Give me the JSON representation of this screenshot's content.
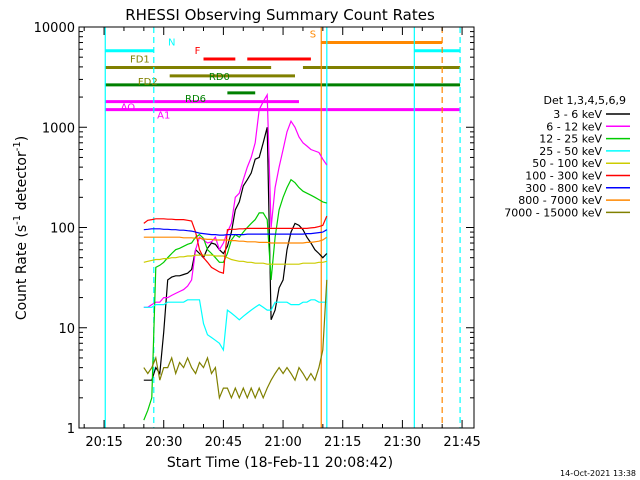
{
  "chart_data": {
    "type": "line",
    "title": "RHESSI Observing Summary Count Rates",
    "xlabel": "Start Time (18-Feb-11 20:08:42)",
    "ylabel_main": "Count Rate (s",
    "ylabel_sup1": "-1",
    "ylabel_mid": " detector",
    "ylabel_sup2": "-1",
    "ylabel_end": ")",
    "yscale": "log",
    "ylim": [
      1,
      10000
    ],
    "xlim_minutes": [
      20.15,
      21.8
    ],
    "x_ticks": [
      "20:15",
      "20:30",
      "20:45",
      "21:00",
      "21:15",
      "21:30",
      "21:45"
    ],
    "x_tick_minutes": [
      15,
      30,
      45,
      60,
      75,
      90,
      105
    ],
    "y_ticks": [
      "1",
      "10",
      "100",
      "1000",
      "10000"
    ],
    "y_tick_values": [
      1,
      10,
      100,
      1000,
      10000
    ],
    "timestamp": "14-Oct-2021 13:38",
    "legend_header": "Det 1,3,4,5,6,9",
    "series": [
      {
        "name": "3 - 6 keV",
        "color": "#000000",
        "x": [
          25,
          26,
          27,
          28,
          29,
          30,
          31,
          32,
          33,
          34,
          35,
          36,
          37,
          38,
          39,
          40,
          41,
          42,
          43,
          44,
          45,
          46,
          47,
          48,
          49,
          50,
          51,
          52,
          53,
          54,
          55,
          56,
          57,
          58,
          59,
          60,
          61,
          62,
          63,
          64,
          65,
          66,
          67,
          68,
          69,
          70,
          71
        ],
        "y": [
          3,
          3,
          3,
          4,
          3.5,
          9,
          30,
          32,
          33,
          33,
          34,
          35,
          38,
          60,
          55,
          50,
          62,
          70,
          68,
          60,
          55,
          65,
          90,
          150,
          180,
          260,
          300,
          350,
          480,
          500,
          700,
          1000,
          12,
          15,
          25,
          30,
          60,
          90,
          110,
          105,
          95,
          80,
          70,
          60,
          55,
          50,
          55
        ]
      },
      {
        "name": "6 - 12 keV",
        "color": "#ff00ff",
        "x": [
          25,
          26,
          27,
          28,
          29,
          30,
          31,
          32,
          33,
          34,
          35,
          36,
          37,
          38,
          39,
          40,
          41,
          42,
          43,
          44,
          45,
          46,
          47,
          48,
          49,
          50,
          51,
          52,
          53,
          54,
          55,
          56,
          57,
          58,
          59,
          60,
          61,
          62,
          63,
          64,
          65,
          66,
          67,
          68,
          69,
          70,
          71
        ],
        "y": [
          16,
          16,
          17,
          18,
          18,
          20,
          20,
          21,
          22,
          23,
          24,
          26,
          30,
          60,
          80,
          75,
          70,
          72,
          80,
          60,
          70,
          90,
          110,
          200,
          220,
          300,
          400,
          500,
          700,
          1500,
          1800,
          2100,
          100,
          250,
          400,
          600,
          900,
          1150,
          1000,
          800,
          700,
          650,
          600,
          580,
          560,
          480,
          420
        ]
      },
      {
        "name": "12 - 25 keV",
        "color": "#00cc00",
        "x": [
          25,
          26,
          27,
          28,
          29,
          30,
          31,
          32,
          33,
          34,
          35,
          36,
          37,
          38,
          39,
          40,
          41,
          42,
          43,
          44,
          45,
          46,
          47,
          48,
          49,
          50,
          51,
          52,
          53,
          54,
          55,
          56,
          57,
          58,
          59,
          60,
          61,
          62,
          63,
          64,
          65,
          66,
          67,
          68,
          69,
          70,
          71
        ],
        "y": [
          1.2,
          1.5,
          2,
          40,
          42,
          45,
          50,
          55,
          60,
          62,
          65,
          68,
          70,
          80,
          85,
          78,
          60,
          55,
          50,
          45,
          45,
          55,
          75,
          85,
          80,
          90,
          100,
          110,
          120,
          140,
          140,
          120,
          30,
          80,
          150,
          200,
          250,
          300,
          280,
          250,
          230,
          220,
          210,
          200,
          190,
          180,
          175
        ]
      },
      {
        "name": "25 - 50 keV",
        "color": "#00ffff",
        "x": [
          25,
          26,
          27,
          28,
          29,
          30,
          31,
          32,
          33,
          34,
          35,
          36,
          37,
          38,
          39,
          40,
          41,
          42,
          43,
          44,
          45,
          46,
          47,
          48,
          49,
          50,
          51,
          52,
          53,
          54,
          55,
          56,
          57,
          58,
          59,
          60,
          61,
          62,
          63,
          64,
          65,
          66,
          67,
          68,
          69,
          70,
          71
        ],
        "y": [
          16,
          16,
          16,
          17,
          17,
          17,
          18,
          18,
          18,
          18,
          18,
          19,
          19,
          19,
          19,
          11,
          8.5,
          8,
          7.5,
          7,
          6,
          15,
          14,
          13,
          12,
          13,
          14,
          15,
          16,
          17,
          16,
          15,
          15,
          18,
          18,
          18,
          18,
          17,
          17,
          17,
          18,
          18,
          19,
          19,
          18,
          18,
          18
        ]
      },
      {
        "name": "50 - 100 keV",
        "color": "#cccc00",
        "x": [
          25,
          26,
          27,
          28,
          29,
          30,
          31,
          32,
          33,
          34,
          35,
          36,
          37,
          38,
          39,
          40,
          41,
          42,
          43,
          44,
          45,
          46,
          47,
          48,
          49,
          50,
          51,
          52,
          53,
          54,
          55,
          56,
          57,
          58,
          59,
          60,
          61,
          62,
          63,
          64,
          65,
          66,
          67,
          68,
          69,
          70,
          71
        ],
        "y": [
          45,
          46,
          47,
          48,
          48,
          49,
          49,
          50,
          50,
          51,
          51,
          52,
          52,
          53,
          53,
          53,
          53,
          53,
          52,
          52,
          52,
          50,
          48,
          47,
          46,
          46,
          45,
          45,
          44,
          44,
          44,
          43,
          43,
          43,
          43,
          43,
          43,
          43,
          43,
          43,
          44,
          44,
          44,
          44,
          45,
          45,
          46
        ]
      },
      {
        "name": "100 - 300 keV",
        "color": "#ff0000",
        "x": [
          25,
          26,
          27,
          28,
          29,
          30,
          31,
          32,
          33,
          34,
          35,
          36,
          37,
          38,
          39,
          40,
          41,
          42,
          43,
          44,
          45,
          46,
          47,
          48,
          49,
          50,
          51,
          52,
          53,
          54,
          55,
          56,
          57,
          58,
          59,
          60,
          61,
          62,
          63,
          64,
          65,
          66,
          67,
          68,
          69,
          70,
          71
        ],
        "y": [
          110,
          118,
          120,
          122,
          122,
          122,
          121,
          121,
          120,
          120,
          120,
          118,
          116,
          90,
          60,
          50,
          45,
          40,
          38,
          36,
          35,
          95,
          96,
          96,
          97,
          97,
          98,
          98,
          98,
          98,
          98,
          98,
          98,
          98,
          98,
          98,
          98,
          98,
          98,
          98,
          98,
          98,
          99,
          100,
          102,
          105,
          130
        ]
      },
      {
        "name": "300 - 800 keV",
        "color": "#0000ff",
        "x": [
          25,
          26,
          27,
          28,
          29,
          30,
          31,
          32,
          33,
          34,
          35,
          36,
          37,
          38,
          39,
          40,
          41,
          42,
          43,
          44,
          45,
          46,
          47,
          48,
          49,
          50,
          51,
          52,
          53,
          54,
          55,
          56,
          57,
          58,
          59,
          60,
          61,
          62,
          63,
          64,
          65,
          66,
          67,
          68,
          69,
          70,
          71
        ],
        "y": [
          95,
          96,
          97,
          97,
          97,
          96,
          96,
          95,
          95,
          94,
          94,
          93,
          92,
          90,
          88,
          87,
          86,
          85,
          85,
          84,
          84,
          85,
          85,
          85,
          85,
          85,
          86,
          86,
          86,
          86,
          86,
          86,
          86,
          86,
          86,
          86,
          86,
          86,
          86,
          86,
          86,
          87,
          87,
          88,
          89,
          90,
          95
        ]
      },
      {
        "name": "800 - 7000 keV",
        "color": "#ff8800",
        "x": [
          25,
          26,
          27,
          28,
          29,
          30,
          31,
          32,
          33,
          34,
          35,
          36,
          37,
          38,
          39,
          40,
          41,
          42,
          43,
          44,
          45,
          46,
          47,
          48,
          49,
          50,
          51,
          52,
          53,
          54,
          55,
          56,
          57,
          58,
          59,
          60,
          61,
          62,
          63,
          64,
          65,
          66,
          67,
          68,
          69,
          70,
          71
        ],
        "y": [
          80,
          80,
          80,
          80,
          80,
          80,
          80,
          80,
          80,
          80,
          79,
          79,
          79,
          78,
          78,
          77,
          76,
          76,
          75,
          75,
          75,
          75,
          74,
          74,
          73,
          73,
          72,
          72,
          72,
          71,
          71,
          71,
          70,
          70,
          70,
          70,
          70,
          70,
          70,
          70,
          70,
          71,
          71,
          72,
          73,
          75,
          80
        ]
      },
      {
        "name": "7000 - 15000 keV",
        "color": "#808000",
        "x": [
          25,
          26,
          27,
          28,
          29,
          30,
          31,
          32,
          33,
          34,
          35,
          36,
          37,
          38,
          39,
          40,
          41,
          42,
          43,
          44,
          45,
          46,
          47,
          48,
          49,
          50,
          51,
          52,
          53,
          54,
          55,
          56,
          57,
          58,
          59,
          60,
          61,
          62,
          63,
          64,
          65,
          66,
          67,
          68,
          69,
          70,
          71
        ],
        "y": [
          4,
          3.5,
          4,
          5,
          3,
          4,
          4,
          5,
          3.5,
          4.5,
          4,
          5,
          4,
          3.5,
          4.5,
          4,
          5,
          3.5,
          4,
          2,
          2.5,
          2.5,
          2,
          2.5,
          2,
          2.5,
          2,
          2.5,
          2,
          2.5,
          2,
          2.5,
          3,
          3.5,
          4,
          3.5,
          4,
          3.5,
          3,
          4,
          3.5,
          3,
          3.5,
          3,
          4,
          6,
          30
        ]
      }
    ],
    "flags": [
      {
        "label": "N",
        "color": "#00ffff",
        "level": 5800,
        "segments": [
          [
            15.3,
            27.5
          ],
          [
            93,
            104.5
          ]
        ]
      },
      {
        "label": "F",
        "color": "#ff0000",
        "level": 4800,
        "segments": [
          [
            40,
            48
          ],
          [
            51,
            67
          ]
        ]
      },
      {
        "label": "S",
        "color": "#ff8800",
        "level": 7000,
        "segments": [
          [
            69.5,
            100
          ]
        ]
      },
      {
        "label": "FD1",
        "color": "#808000",
        "level": 3950,
        "segments": [
          [
            15.3,
            57
          ],
          [
            65,
            104.5
          ]
        ]
      },
      {
        "label": "FD2",
        "color": "#808000",
        "level": 3250,
        "segments": [
          [
            31.5,
            63
          ]
        ]
      },
      {
        "label": "RD0",
        "color": "#008000",
        "level": 2650,
        "segments": [
          [
            15.3,
            104.5
          ]
        ]
      },
      {
        "label": "RD6",
        "color": "#008000",
        "level": 2200,
        "segments": [
          [
            46,
            53
          ]
        ]
      },
      {
        "label": "AO",
        "color": "#ff00ff",
        "level": 1800,
        "segments": [
          [
            15.3,
            64
          ]
        ]
      },
      {
        "label": "A1",
        "color": "#ff00ff",
        "level": 1500,
        "segments": [
          [
            15.3,
            104.5
          ]
        ]
      }
    ],
    "vlines": [
      {
        "minute": 15.3,
        "color": "#00ffff",
        "style": "solid"
      },
      {
        "minute": 27.5,
        "color": "#00ffff",
        "style": "dashed"
      },
      {
        "minute": 69.6,
        "color": "#ff8800",
        "style": "solid"
      },
      {
        "minute": 71,
        "color": "#00ffff",
        "style": "solid"
      },
      {
        "minute": 93,
        "color": "#00ffff",
        "style": "solid"
      },
      {
        "minute": 100,
        "color": "#ff8800",
        "style": "dashed"
      },
      {
        "minute": 104.5,
        "color": "#00ffff",
        "style": "dashed"
      }
    ]
  }
}
